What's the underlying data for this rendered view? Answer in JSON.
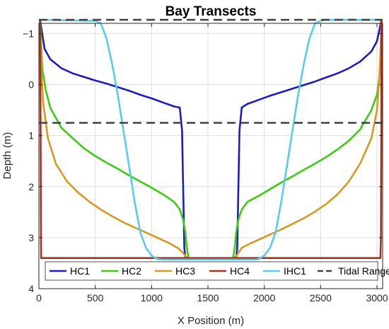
{
  "chart_data": {
    "type": "line",
    "title": "Bay Transects",
    "xlabel": "X Position (m)",
    "ylabel": "Depth (m)",
    "xlim": [
      0,
      3050
    ],
    "ylim": [
      -1.2,
      4
    ],
    "y_reversed": true,
    "grid": true,
    "legend_placement": "bottom, horizontal, inside axes",
    "xticks": [
      0,
      500,
      1000,
      1500,
      2000,
      2500,
      3000
    ],
    "yticks": [
      -1,
      0,
      1,
      2,
      3,
      4
    ],
    "xtick_labels": [
      "0",
      "500",
      "1000",
      "1500",
      "2000",
      "2500",
      "3000"
    ],
    "ytick_labels": [
      "−1",
      "0",
      "1",
      "2",
      "3",
      "4"
    ],
    "series": [
      {
        "name": "HC1",
        "color": "#1c1cc4",
        "style": "solid",
        "x": [
          10,
          50,
          100,
          200,
          300,
          400,
          500,
          600,
          700,
          800,
          900,
          1000,
          1100,
          1200,
          1250,
          1270,
          1290,
          1300,
          1310,
          1320,
          1330,
          1720,
          1730,
          1740,
          1750,
          1760,
          1780,
          1800,
          1850,
          1950,
          2050,
          2150,
          2250,
          2350,
          2450,
          2550,
          2650,
          2750,
          2850,
          2950,
          3000,
          3040
        ],
        "y": [
          -1.27,
          -0.7,
          -0.5,
          -0.32,
          -0.22,
          -0.15,
          -0.08,
          -0.02,
          0.05,
          0.12,
          0.2,
          0.27,
          0.35,
          0.43,
          0.45,
          0.9,
          3.2,
          3.4,
          3.42,
          3.42,
          3.42,
          3.42,
          3.42,
          3.42,
          3.4,
          3.2,
          0.9,
          0.45,
          0.38,
          0.3,
          0.22,
          0.15,
          0.08,
          0.01,
          -0.06,
          -0.14,
          -0.22,
          -0.32,
          -0.45,
          -0.65,
          -0.85,
          -1.27
        ]
      },
      {
        "name": "HC2",
        "color": "#3ccc14",
        "style": "solid",
        "x": [
          10,
          30,
          60,
          100,
          200,
          300,
          400,
          500,
          600,
          700,
          800,
          900,
          1000,
          1100,
          1200,
          1250,
          1280,
          1300,
          1310,
          1320,
          1330,
          1720,
          1730,
          1740,
          1750,
          1770,
          1800,
          1850,
          1950,
          2050,
          2150,
          2250,
          2350,
          2450,
          2550,
          2650,
          2750,
          2850,
          2950,
          3000,
          3030,
          3040
        ],
        "y": [
          -1.27,
          -0.3,
          0.1,
          0.45,
          0.85,
          1.05,
          1.25,
          1.4,
          1.53,
          1.65,
          1.78,
          1.9,
          2.02,
          2.15,
          2.3,
          2.45,
          2.65,
          2.9,
          3.15,
          3.3,
          3.42,
          3.42,
          3.3,
          3.15,
          2.9,
          2.65,
          2.45,
          2.3,
          2.18,
          2.05,
          1.92,
          1.8,
          1.67,
          1.55,
          1.42,
          1.27,
          1.1,
          0.88,
          0.5,
          0.2,
          -0.3,
          -1.27
        ]
      },
      {
        "name": "HC3",
        "color": "#d8991f",
        "style": "solid",
        "x": [
          10,
          20,
          40,
          80,
          150,
          250,
          350,
          450,
          550,
          650,
          750,
          850,
          950,
          1050,
          1150,
          1230,
          1280,
          1300,
          1320,
          1330,
          1720,
          1730,
          1750,
          1770,
          1800,
          1870,
          1950,
          2050,
          2150,
          2250,
          2350,
          2450,
          2550,
          2650,
          2750,
          2850,
          2950,
          3000,
          3020,
          3030,
          3040
        ],
        "y": [
          -1.27,
          -0.3,
          0.4,
          1.05,
          1.55,
          1.9,
          2.12,
          2.3,
          2.45,
          2.58,
          2.7,
          2.8,
          2.9,
          3.0,
          3.1,
          3.2,
          3.3,
          3.36,
          3.4,
          3.42,
          3.42,
          3.4,
          3.36,
          3.3,
          3.2,
          3.12,
          3.04,
          2.94,
          2.84,
          2.73,
          2.62,
          2.49,
          2.34,
          2.15,
          1.9,
          1.55,
          1.05,
          0.5,
          -0.1,
          -0.6,
          -1.27
        ]
      },
      {
        "name": "HC4",
        "color": "#a8321e",
        "style": "solid",
        "x": [
          10,
          12,
          15,
          18,
          20,
          30,
          3030,
          3035,
          3038,
          3040
        ],
        "y": [
          -1.27,
          -0.5,
          1.0,
          3.0,
          3.4,
          3.4,
          3.4,
          3.0,
          1.0,
          -1.27
        ]
      },
      {
        "name": "IHC1",
        "color": "#57ccf0",
        "style": "solid",
        "x": [
          10,
          500,
          550,
          600,
          650,
          700,
          750,
          800,
          850,
          900,
          950,
          1000,
          1050,
          1100,
          1130,
          1920,
          1950,
          2000,
          2050,
          2100,
          2150,
          2200,
          2250,
          2300,
          2350,
          2400,
          2450,
          2500,
          2550,
          3040
        ],
        "y": [
          -1.27,
          -1.25,
          -1.2,
          -0.9,
          -0.4,
          0.2,
          0.9,
          1.6,
          2.3,
          2.9,
          3.2,
          3.35,
          3.42,
          3.43,
          3.43,
          3.43,
          3.42,
          3.35,
          3.2,
          2.9,
          2.3,
          1.6,
          0.9,
          0.2,
          -0.4,
          -0.9,
          -1.2,
          -1.25,
          -1.27,
          -1.27
        ]
      },
      {
        "name": "Tidal Range",
        "color": "#404040",
        "style": "dashed",
        "segments": [
          {
            "x": [
              0,
              3050
            ],
            "y": [
              -1.27,
              -1.27
            ]
          },
          {
            "x": [
              0,
              3050
            ],
            "y": [
              0.75,
              0.75
            ]
          }
        ]
      }
    ]
  }
}
